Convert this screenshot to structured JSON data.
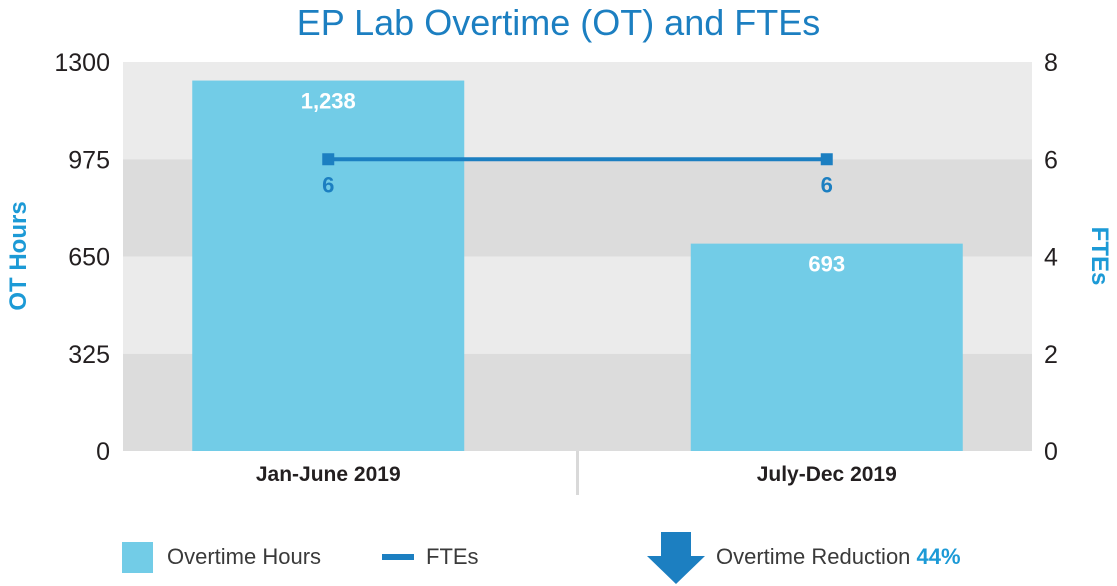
{
  "title": "EP Lab Overtime (OT) and FTEs",
  "colors": {
    "bar": "#72cce7",
    "line": "#1c7fc1",
    "title": "#1c7fc1",
    "band_light": "#ebebeb",
    "band_dark": "#dcdcdc",
    "axis_title": "#1c9ad6"
  },
  "legend": {
    "bar_label": "Overtime Hours",
    "line_label": "FTEs",
    "reduction_label": "Overtime Reduction",
    "reduction_value": "44%",
    "reduction_icon": "down-arrow-icon"
  },
  "chart_data": {
    "type": "bar",
    "title": "EP Lab Overtime (OT) and FTEs",
    "categories": [
      "Jan-June 2019",
      "July-Dec 2019"
    ],
    "series": [
      {
        "name": "Overtime Hours",
        "type": "bar",
        "axis": "left",
        "values": [
          1238,
          693
        ],
        "labels": [
          "1,238",
          "693"
        ]
      },
      {
        "name": "FTEs",
        "type": "line",
        "axis": "right",
        "values": [
          6,
          6
        ],
        "labels": [
          "6",
          "6"
        ]
      }
    ],
    "ylabel": "OT Hours",
    "y2label": "FTEs",
    "ylim": [
      0,
      1300
    ],
    "y2lim": [
      0,
      8
    ],
    "yticks": [
      "0",
      "325",
      "650",
      "975",
      "1300"
    ],
    "y2ticks": [
      "0",
      "2",
      "4",
      "6",
      "8"
    ],
    "grid": "alternating horizontal bands",
    "legend_position": "bottom"
  }
}
